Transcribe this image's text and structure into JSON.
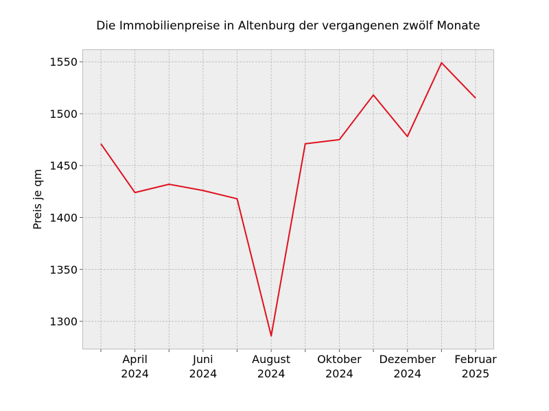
{
  "chart_data": {
    "type": "line",
    "title": "Die Immobilienpreise in Altenburg der vergangenen zwölf Monate",
    "xlabel": "",
    "ylabel": "Preis je qm",
    "x": [
      "2024-03",
      "2024-04",
      "2024-05",
      "2024-06",
      "2024-07",
      "2024-08",
      "2024-09",
      "2024-10",
      "2024-11",
      "2024-12",
      "2025-01",
      "2025-02"
    ],
    "values": [
      1471,
      1424,
      1432,
      1426,
      1418,
      1286,
      1471,
      1475,
      1518,
      1478,
      1549,
      1515
    ],
    "series_color": "#e0101e",
    "ylim": [
      1273,
      1562
    ],
    "yticks": [
      1300,
      1350,
      1400,
      1450,
      1500,
      1550
    ],
    "xtick_labels": [
      {
        "month": "April",
        "year": "2024"
      },
      {
        "month": "Juni",
        "year": "2024"
      },
      {
        "month": "August",
        "year": "2024"
      },
      {
        "month": "Oktober",
        "year": "2024"
      },
      {
        "month": "Dezember",
        "year": "2024"
      },
      {
        "month": "Februar",
        "year": "2025"
      }
    ],
    "grid": true,
    "background": "#eeeeee"
  }
}
